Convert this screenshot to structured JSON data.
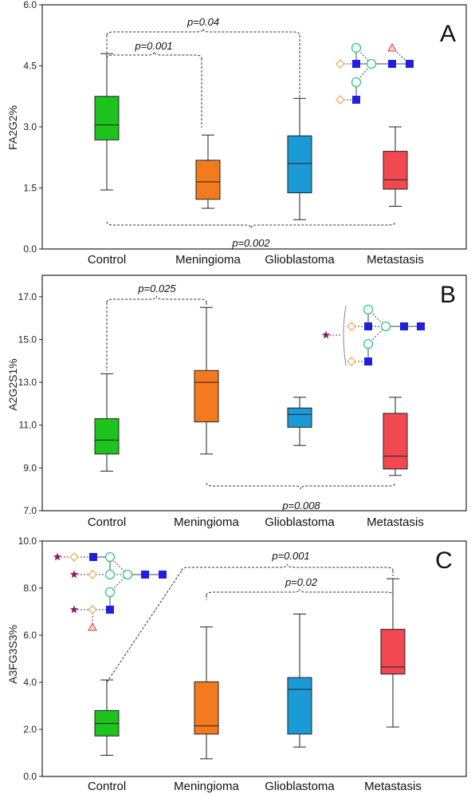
{
  "colors": {
    "Control": "#1ec31e",
    "Meningioma": "#f47a1f",
    "Glioblastoma": "#1b9ad6",
    "Metastasis": "#f24852",
    "glycan_square": "#1f1fe0",
    "glycan_circle": "#2fc98c",
    "glycan_diamond": "#f0a34a",
    "glycan_star": "#8b1a6b",
    "glycan_fucose": "#e63b3b"
  },
  "chart_data": [
    {
      "type": "box",
      "panel_label": "A",
      "ylabel": "FA2G2%",
      "xlabel": "",
      "ylim": [
        0,
        6
      ],
      "yticks": [
        "0.0",
        "1.5",
        "3.0",
        "4.5",
        "6.0"
      ],
      "categories": [
        "Control",
        "Meningioma",
        "Glioblastoma",
        "Metastasis"
      ],
      "boxes": [
        {
          "group": "Control",
          "min": 1.45,
          "q1": 2.68,
          "median": 3.05,
          "q3": 3.75,
          "max": 4.8
        },
        {
          "group": "Meningioma",
          "min": 1.0,
          "q1": 1.22,
          "median": 1.65,
          "q3": 2.18,
          "max": 2.8
        },
        {
          "group": "Glioblastoma",
          "min": 0.72,
          "q1": 1.38,
          "median": 2.1,
          "q3": 2.78,
          "max": 3.7
        },
        {
          "group": "Metastasis",
          "min": 1.05,
          "q1": 1.47,
          "median": 1.7,
          "q3": 2.4,
          "max": 3.0
        }
      ],
      "annotations": [
        {
          "text": "p=0.001",
          "from": "Control",
          "to": "Meningioma",
          "position": "above"
        },
        {
          "text": "p=0.04",
          "from": "Control",
          "to": "Glioblastoma",
          "position": "above"
        },
        {
          "text": "p=0.002",
          "from": "Control",
          "to": "Metastasis",
          "position": "below"
        }
      ],
      "glycan": "FA2G2"
    },
    {
      "type": "box",
      "panel_label": "B",
      "ylabel": "A2G2S1%",
      "xlabel": "",
      "ylim": [
        7,
        18
      ],
      "yticks": [
        "7.0",
        "9.0",
        "11.0",
        "13.0",
        "15.0",
        "17.0"
      ],
      "categories": [
        "Control",
        "Meningioma",
        "Glioblastoma",
        "Metastasis"
      ],
      "boxes": [
        {
          "group": "Control",
          "min": 8.85,
          "q1": 9.65,
          "median": 10.3,
          "q3": 11.3,
          "max": 13.4
        },
        {
          "group": "Meningioma",
          "min": 9.65,
          "q1": 11.15,
          "median": 13.0,
          "q3": 13.55,
          "max": 16.5
        },
        {
          "group": "Glioblastoma",
          "min": 10.05,
          "q1": 10.9,
          "median": 11.5,
          "q3": 11.8,
          "max": 12.3
        },
        {
          "group": "Metastasis",
          "min": 8.65,
          "q1": 8.95,
          "median": 9.55,
          "q3": 11.55,
          "max": 12.3
        }
      ],
      "annotations": [
        {
          "text": "p=0.025",
          "from": "Control",
          "to": "Meningioma",
          "position": "above"
        },
        {
          "text": "p=0.008",
          "from": "Meningioma",
          "to": "Metastasis",
          "position": "below"
        }
      ],
      "glycan": "A2G2S1"
    },
    {
      "type": "box",
      "panel_label": "C",
      "ylabel": "A3FG3S3%",
      "xlabel": "",
      "ylim": [
        0,
        10
      ],
      "yticks": [
        "0.0",
        "2.0",
        "4.0",
        "6.0",
        "8.0",
        "10.0"
      ],
      "categories": [
        "Control",
        "Meningioma",
        "Glioblastoma",
        "Metastasis"
      ],
      "boxes": [
        {
          "group": "Control",
          "min": 0.9,
          "q1": 1.72,
          "median": 2.25,
          "q3": 2.8,
          "max": 4.1
        },
        {
          "group": "Meningioma",
          "min": 0.75,
          "q1": 1.8,
          "median": 2.15,
          "q3": 4.02,
          "max": 6.35
        },
        {
          "group": "Glioblastoma",
          "min": 1.25,
          "q1": 1.8,
          "median": 3.7,
          "q3": 4.2,
          "max": 6.9
        },
        {
          "group": "Metastasis",
          "min": 2.1,
          "q1": 4.35,
          "median": 4.65,
          "q3": 6.25,
          "max": 8.4
        }
      ],
      "annotations": [
        {
          "text": "p=0.001",
          "from": "Control",
          "to": "Metastasis",
          "position": "above"
        },
        {
          "text": "p=0.02",
          "from": "Meningioma",
          "to": "Metastasis",
          "position": "above"
        }
      ],
      "glycan": "A3FG3S3"
    }
  ]
}
